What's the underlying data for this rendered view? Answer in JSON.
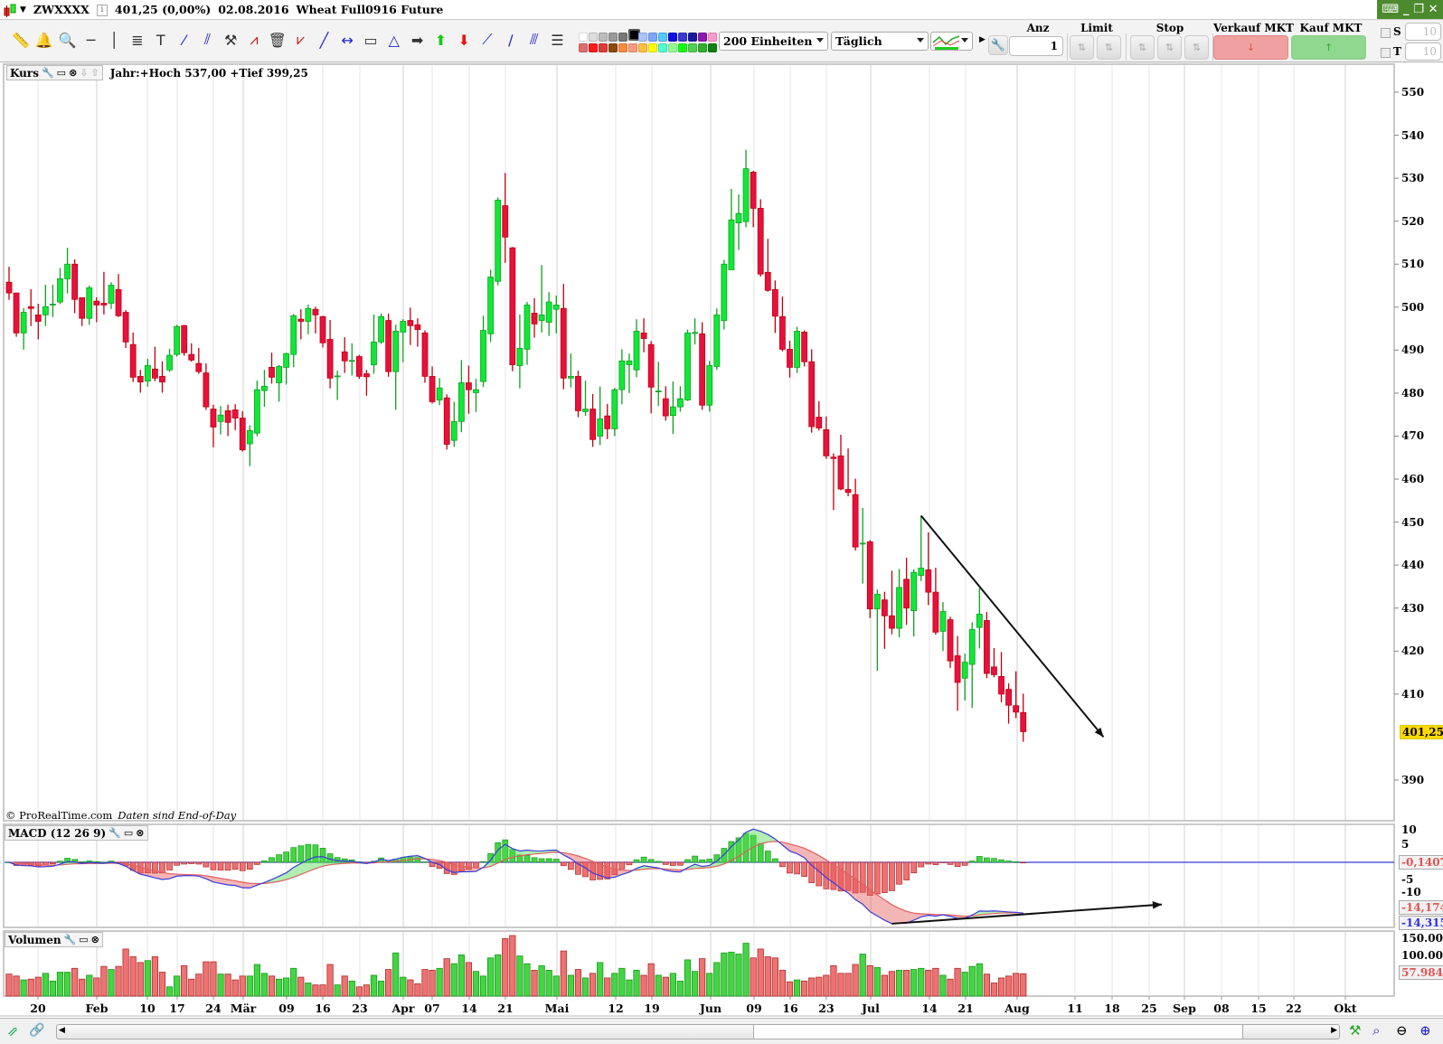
{
  "title_bar": {
    "symbol": "ZWXXXX",
    "price": "401,25 (0,00%)",
    "date": "02.08.2016",
    "name": "Wheat Full0916 Future"
  },
  "toolbar": {
    "tools": [
      "ruler-icon",
      "alarm-bell-icon",
      "zoom-icon",
      "horizontal-line-icon",
      "vertical-line-icon",
      "indicator-line-icon",
      "text-icon",
      "segment-icon",
      "parallel-lines-icon",
      "tools-icon",
      "fibonacci-icon",
      "trash-icon",
      "zigzag-icon",
      "trendline-icon",
      "horizontal-segment-icon",
      "rectangle-icon",
      "triangle-icon",
      "arrow-right-icon",
      "arrow-up-icon",
      "arrow-down-icon",
      "gann-fan-icon",
      "gann-line-icon",
      "channel-icon",
      "indicator-list-icon"
    ],
    "palette_top": [
      "#ffffff",
      "#dddddd",
      "#bbbbbb",
      "#999999",
      "#777777",
      "#000000",
      "#aac4ff",
      "#7aa7ff",
      "#55c8ff",
      "#1010e0",
      "#3a3ad0",
      "#1a1aa0",
      "#8a1ab0",
      "#ff99cc"
    ],
    "palette_bottom": [
      "#e06c6c",
      "#ff1a1a",
      "#e03a3a",
      "#8a4a10",
      "#ff8a3a",
      "#ff9a80",
      "#ffc040",
      "#ffff00",
      "#50ffd0",
      "#90ff90",
      "#10ff10",
      "#50d050",
      "#30b030",
      "#108010"
    ],
    "selected_color": "#000000",
    "units_select": "200 Einheiten",
    "period_select": "Täglich"
  },
  "order_panel": {
    "qty_label": "Anz",
    "qty_value": "1",
    "limit_label": "Limit",
    "stop_label": "Stop",
    "sell_label": "Verkauf MKT",
    "buy_label": "Kauf MKT",
    "s_label": "S",
    "s_value": "10",
    "t_label": "T",
    "t_value": "10",
    "sell_color": "#f0a0a0",
    "buy_color": "#90d890"
  },
  "price_panel": {
    "label": "Kurs",
    "info": "Jahr:+Hoch 537,00 +Tief 399,25",
    "copyright": "© ProRealTime.com",
    "note": "Daten sind End-of-Day",
    "y_ticks": [
      "550",
      "540",
      "530",
      "520",
      "510",
      "500",
      "490",
      "480",
      "470",
      "460",
      "450",
      "440",
      "430",
      "420",
      "410",
      "390"
    ],
    "last_price": "401,25"
  },
  "macd_panel": {
    "label": "MACD (12 26 9)",
    "y_ticks": [
      "10",
      "5",
      "-5",
      "-10"
    ],
    "histogram_value": "-0,1407",
    "signal_value": "-14,174",
    "macd_value": "-14,315"
  },
  "volume_panel": {
    "label": "Volumen",
    "y_ticks": [
      "150.000",
      "100.000"
    ],
    "last_volume": "57.984"
  },
  "x_axis": [
    "20",
    "Feb",
    "10",
    "17",
    "24",
    "Mär",
    "09",
    "16",
    "23",
    "Apr",
    "07",
    "14",
    "21",
    "Mai",
    "12",
    "19",
    "Jun",
    "09",
    "16",
    "23",
    "Jul",
    "14",
    "21",
    "Aug",
    "11",
    "18",
    "25",
    "Sep",
    "08",
    "15",
    "22",
    "Okt"
  ],
  "chart_data": {
    "type": "candlestick",
    "ohlc_fields": [
      "open",
      "high",
      "low",
      "close"
    ],
    "ohlc": [
      [
        505.8,
        509.4,
        501.7,
        503.3
      ],
      [
        503.3,
        503.3,
        493.1,
        494.0
      ],
      [
        494.0,
        499.8,
        490.1,
        498.8
      ],
      [
        500.1,
        504.2,
        495.6,
        499.7
      ],
      [
        498.2,
        500.8,
        492.5,
        496.7
      ],
      [
        498.2,
        505.2,
        495.6,
        500.1
      ],
      [
        500.6,
        505.2,
        497.7,
        500.7
      ],
      [
        501.2,
        509.1,
        500.7,
        506.6
      ],
      [
        506.6,
        513.8,
        503.2,
        510.0
      ],
      [
        510.0,
        511.1,
        498.6,
        501.8
      ],
      [
        502.2,
        502.2,
        495.6,
        497.4
      ],
      [
        497.4,
        505.0,
        495.9,
        504.5
      ],
      [
        501.4,
        502.3,
        496.5,
        500.5
      ],
      [
        500.9,
        508.2,
        498.3,
        500.5
      ],
      [
        500.9,
        505.8,
        499.6,
        505.1
      ],
      [
        504.1,
        507.7,
        497.7,
        498.0
      ],
      [
        498.8,
        499.3,
        490.5,
        491.9
      ],
      [
        491.3,
        494.1,
        482.6,
        483.7
      ],
      [
        483.9,
        485.4,
        480.1,
        482.6
      ],
      [
        482.8,
        488.0,
        481.5,
        486.4
      ],
      [
        485.6,
        490.8,
        482.8,
        483.5
      ],
      [
        483.9,
        487.4,
        480.1,
        482.6
      ],
      [
        485.4,
        490.3,
        484.9,
        488.8
      ],
      [
        489.0,
        495.9,
        488.5,
        495.5
      ],
      [
        495.7,
        495.9,
        488.7,
        489.4
      ],
      [
        489.0,
        491.6,
        487.3,
        487.7
      ],
      [
        486.9,
        490.5,
        484.5,
        485.0
      ],
      [
        484.7,
        486.9,
        476.1,
        476.8
      ],
      [
        476.3,
        477.3,
        467.4,
        472.1
      ],
      [
        473.4,
        477.0,
        470.4,
        474.9
      ],
      [
        475.9,
        477.3,
        470.0,
        473.2
      ],
      [
        476.1,
        477.4,
        471.4,
        474.2
      ],
      [
        474.2,
        475.8,
        466.4,
        466.8
      ],
      [
        468.2,
        472.5,
        463.0,
        471.3
      ],
      [
        470.7,
        482.9,
        470.0,
        480.8
      ],
      [
        480.6,
        485.4,
        476.8,
        481.6
      ],
      [
        486.0,
        489.4,
        482.2,
        483.7
      ],
      [
        482.4,
        486.6,
        478.0,
        486.2
      ],
      [
        486.0,
        489.4,
        482.0,
        489.2
      ],
      [
        489.0,
        498.4,
        486.0,
        498.0
      ],
      [
        497.2,
        499.5,
        492.5,
        496.7
      ],
      [
        496.7,
        500.6,
        493.7,
        499.7
      ],
      [
        499.5,
        500.1,
        493.9,
        498.2
      ],
      [
        497.8,
        498.0,
        490.6,
        491.7
      ],
      [
        492.5,
        497.0,
        481.1,
        483.5
      ],
      [
        484.0,
        485.2,
        478.4,
        484.0
      ],
      [
        489.6,
        493.0,
        484.7,
        487.5
      ],
      [
        487.6,
        491.6,
        484.1,
        487.6
      ],
      [
        488.5,
        488.9,
        483.3,
        483.9
      ],
      [
        484.5,
        485.4,
        479.4,
        483.8
      ],
      [
        486.6,
        498.3,
        484.5,
        491.9
      ],
      [
        491.9,
        498.5,
        491.4,
        497.8
      ],
      [
        496.9,
        498.5,
        483.8,
        485.0
      ],
      [
        485.0,
        495.9,
        476.1,
        494.4
      ],
      [
        494.2,
        497.2,
        487.2,
        496.7
      ],
      [
        496.9,
        499.9,
        491.2,
        495.7
      ],
      [
        495.9,
        497.4,
        490.8,
        494.8
      ],
      [
        494.0,
        494.6,
        482.4,
        483.9
      ],
      [
        483.9,
        486.2,
        477.6,
        478.0
      ],
      [
        478.4,
        483.5,
        477.2,
        481.2
      ],
      [
        478.9,
        479.7,
        466.9,
        468.1
      ],
      [
        469.0,
        478.0,
        467.5,
        473.4
      ],
      [
        473.4,
        487.7,
        470.9,
        482.4
      ],
      [
        482.4,
        486.4,
        475.2,
        480.8
      ],
      [
        480.1,
        483.3,
        475.6,
        480.8
      ],
      [
        482.7,
        498.0,
        481.4,
        494.6
      ],
      [
        493.8,
        508.7,
        491.9,
        507.0
      ],
      [
        506.0,
        525.5,
        505.1,
        524.9
      ],
      [
        523.6,
        531.2,
        510.3,
        516.3
      ],
      [
        513.8,
        514.0,
        485.1,
        486.6
      ],
      [
        486.4,
        498.3,
        481.1,
        490.4
      ],
      [
        490.2,
        501.2,
        486.6,
        500.5
      ],
      [
        498.6,
        502.1,
        492.9,
        496.1
      ],
      [
        496.9,
        509.8,
        494.1,
        498.2
      ],
      [
        496.5,
        503.5,
        493.3,
        501.2
      ],
      [
        499.5,
        502.7,
        493.9,
        500.5
      ],
      [
        499.7,
        505.4,
        480.9,
        483.5
      ],
      [
        483.5,
        489.2,
        481.3,
        483.9
      ],
      [
        483.9,
        485.2,
        474.4,
        475.9
      ],
      [
        475.7,
        482.9,
        474.7,
        476.3
      ],
      [
        476.3,
        479.8,
        467.5,
        469.2
      ],
      [
        470.0,
        481.5,
        467.9,
        474.0
      ],
      [
        474.7,
        477.5,
        469.3,
        471.7
      ],
      [
        471.7,
        481.2,
        470.0,
        480.8
      ],
      [
        480.8,
        490.2,
        477.4,
        487.5
      ],
      [
        486.6,
        489.2,
        480.0,
        487.5
      ],
      [
        485.4,
        497.2,
        483.7,
        494.4
      ],
      [
        494.0,
        497.4,
        489.5,
        492.7
      ],
      [
        491.3,
        492.1,
        475.3,
        481.4
      ],
      [
        480.5,
        487.3,
        477.0,
        480.5
      ],
      [
        478.7,
        481.6,
        473.6,
        474.7
      ],
      [
        474.8,
        482.7,
        470.5,
        476.8
      ],
      [
        476.8,
        481.6,
        475.7,
        478.7
      ],
      [
        478.4,
        494.8,
        478.2,
        494.0
      ],
      [
        494.1,
        497.4,
        491.3,
        494.1
      ],
      [
        493.8,
        496.5,
        476.1,
        477.2
      ],
      [
        477.2,
        487.5,
        475.7,
        486.4
      ],
      [
        486.2,
        499.7,
        485.4,
        498.2
      ],
      [
        496.9,
        511.0,
        494.8,
        510.0
      ],
      [
        508.7,
        527.5,
        508.7,
        520.3
      ],
      [
        519.6,
        526.2,
        513.3,
        521.8
      ],
      [
        519.9,
        536.6,
        518.6,
        532.2
      ],
      [
        531.4,
        531.7,
        518.6,
        523.0
      ],
      [
        523.0,
        525.1,
        507.1,
        507.7
      ],
      [
        508.1,
        515.9,
        503.6,
        503.9
      ],
      [
        504.1,
        506.2,
        494.0,
        497.9
      ],
      [
        497.8,
        502.5,
        489.7,
        490.2
      ],
      [
        490.2,
        492.2,
        483.6,
        486.0
      ],
      [
        486.0,
        495.4,
        484.7,
        494.4
      ],
      [
        494.2,
        494.6,
        486.2,
        487.3
      ],
      [
        487.3,
        490.2,
        470.8,
        472.2
      ],
      [
        474.4,
        478.1,
        471.3,
        471.9
      ],
      [
        471.5,
        474.6,
        464.7,
        465.4
      ],
      [
        465.1,
        466.0,
        452.8,
        464.8
      ],
      [
        465.4,
        470.3,
        457.4,
        457.7
      ],
      [
        457.6,
        467.1,
        456.0,
        456.9
      ],
      [
        456.4,
        460.1,
        443.4,
        444.2
      ],
      [
        445.1,
        453.3,
        435.7,
        445.1
      ],
      [
        445.4,
        445.8,
        427.7,
        429.8
      ],
      [
        429.8,
        434.3,
        415.4,
        433.2
      ],
      [
        431.9,
        433.8,
        420.5,
        428.2
      ],
      [
        428.2,
        438.7,
        423.9,
        425.3
      ],
      [
        425.3,
        439.1,
        423.2,
        434.8
      ],
      [
        436.7,
        441.7,
        426.1,
        430.0
      ],
      [
        429.4,
        439.0,
        423.4,
        438.3
      ],
      [
        437.6,
        451.5,
        436.3,
        439.3
      ],
      [
        438.9,
        447.6,
        430.7,
        433.7
      ],
      [
        433.7,
        439.4,
        423.8,
        424.4
      ],
      [
        424.6,
        431.4,
        420.0,
        429.2
      ],
      [
        427.3,
        428.0,
        416.1,
        417.7
      ],
      [
        418.9,
        423.5,
        406.1,
        412.7
      ],
      [
        413.7,
        419.4,
        408.5,
        417.4
      ],
      [
        416.9,
        426.7,
        406.8,
        425.0
      ],
      [
        425.5,
        434.6,
        420.6,
        428.6
      ],
      [
        427.1,
        429.1,
        413.7,
        414.8
      ],
      [
        416.3,
        420.7,
        413.9,
        414.5
      ],
      [
        414.1,
        419.8,
        408.1,
        410.0
      ],
      [
        411.1,
        412.5,
        403.1,
        407.4
      ],
      [
        407.3,
        415.3,
        404.4,
        405.8
      ],
      [
        405.7,
        410.1,
        398.9,
        401.25
      ]
    ],
    "volume": [
      57,
      52,
      42,
      44,
      49,
      59,
      39,
      62,
      62,
      72,
      44,
      54,
      47,
      77,
      69,
      77,
      122,
      102,
      87,
      92,
      102,
      62,
      24,
      52,
      79,
      44,
      57,
      89,
      89,
      57,
      57,
      42,
      52,
      52,
      82,
      59,
      52,
      44,
      47,
      72,
      49,
      34,
      29,
      29,
      82,
      29,
      52,
      39,
      24,
      29,
      54,
      39,
      69,
      112,
      49,
      42,
      32,
      69,
      67,
      72,
      97,
      84,
      107,
      87,
      64,
      52,
      99,
      107,
      149,
      157,
      104,
      84,
      67,
      79,
      67,
      52,
      117,
      54,
      69,
      47,
      59,
      87,
      47,
      59,
      72,
      42,
      67,
      54,
      84,
      54,
      49,
      59,
      39,
      94,
      64,
      97,
      59,
      87,
      112,
      114,
      109,
      137,
      99,
      122,
      102,
      99,
      67,
      37,
      42,
      39,
      47,
      49,
      54,
      79,
      59,
      59,
      82,
      109,
      79,
      74,
      54,
      64,
      67,
      67,
      69,
      72,
      67,
      72,
      54,
      44,
      72,
      62,
      77,
      84,
      57,
      34,
      47,
      52,
      59,
      58
    ],
    "volume_unit": "thousand",
    "price_range": [
      385,
      555
    ],
    "volume_range": [
      0,
      150000
    ],
    "macd_params": [
      12,
      26,
      9
    ],
    "colors": {
      "up": "#10e838",
      "down": "#e8103c",
      "up_border": "#10a020",
      "down_border": "#c00010",
      "macd": "#3a3ae0",
      "signal": "#e06060"
    },
    "drawings": [
      {
        "panel": "price",
        "type": "arrow",
        "from": {
          "bar": 126,
          "value": 451.5
        },
        "to": {
          "bar": 151,
          "value": 400
        }
      },
      {
        "panel": "macd",
        "type": "arrow",
        "from": {
          "bar": 122,
          "value": -17.2
        },
        "to": {
          "bar": 159,
          "value": -11.8
        }
      }
    ]
  }
}
